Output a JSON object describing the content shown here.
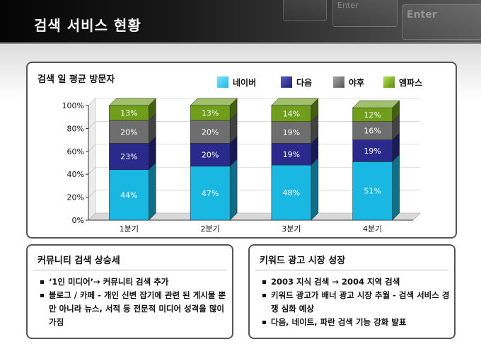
{
  "page": {
    "title": "검색 서비스 현황"
  },
  "chart_data": {
    "type": "bar",
    "stacked": true,
    "title": "검색 일 평균 방문자",
    "categories": [
      "1분기",
      "2분기",
      "3분기",
      "4분기"
    ],
    "yticks": [
      "0%",
      "20%",
      "40%",
      "60%",
      "80%",
      "100%"
    ],
    "ylim": [
      0,
      100
    ],
    "legend_position": "top",
    "series": [
      {
        "name": "네이버",
        "color": "#19b8e3",
        "values": [
          44,
          47,
          48,
          51
        ]
      },
      {
        "name": "다음",
        "color": "#2a2a8c",
        "values": [
          23,
          20,
          19,
          19
        ]
      },
      {
        "name": "야후",
        "color": "#6e6e6e",
        "values": [
          20,
          20,
          19,
          16
        ]
      },
      {
        "name": "엠파스",
        "color": "#6f9e1b",
        "values": [
          13,
          13,
          14,
          12
        ]
      }
    ]
  },
  "boxes": [
    {
      "title": "커뮤니티 검색 상승세",
      "items": [
        "‘1인 미디어’→ 커뮤니티 검색 추가",
        "블로그 / 카페 - 개인 신변 잡기에 관련 된 게시물 뿐만 아니라 뉴스, 서적 등 전문적 미디어 성격을 많이 가짐"
      ]
    },
    {
      "title": "키워드 광고 시장 성장",
      "items": [
        "2003 지식 검색 → 2004 지역 검색",
        "키워드 광고가 배너 광고 시장 추월 - 검색 서비스 경쟁 심화 예상",
        "다음, 네이트, 파란 검색 기능 강화 발표"
      ]
    }
  ],
  "header_keys": [
    "Enter",
    "Enter"
  ]
}
